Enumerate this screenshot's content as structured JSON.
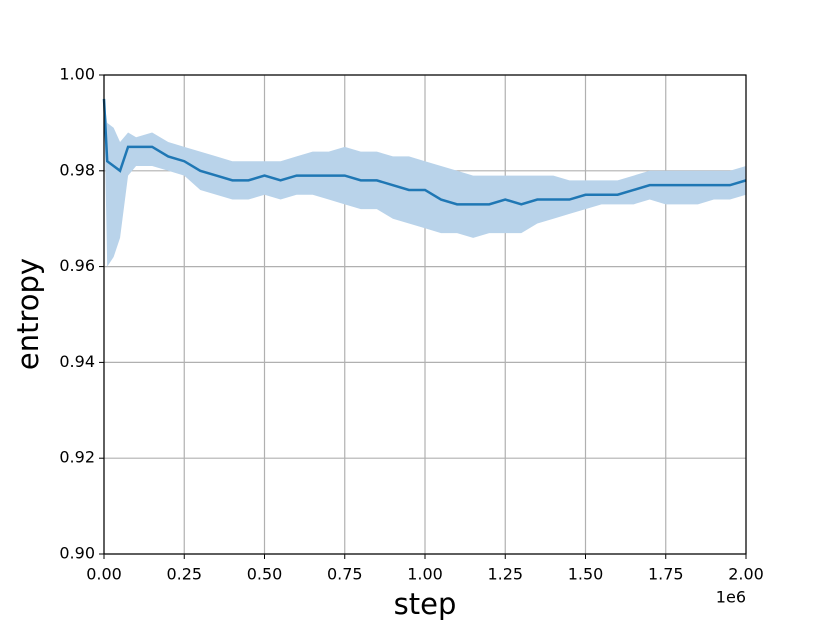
{
  "chart_data": {
    "type": "line",
    "xlabel": "step",
    "ylabel": "entropy",
    "x_offset_label": "1e6",
    "color": "#1f77b4",
    "band_color": "#b9d3ea",
    "grid": true,
    "x": [
      0,
      0.01,
      0.03,
      0.05,
      0.075,
      0.1,
      0.15,
      0.2,
      0.25,
      0.3,
      0.35,
      0.4,
      0.45,
      0.5,
      0.55,
      0.6,
      0.65,
      0.7,
      0.75,
      0.8,
      0.85,
      0.9,
      0.95,
      1.0,
      1.05,
      1.1,
      1.15,
      1.2,
      1.25,
      1.3,
      1.35,
      1.4,
      1.45,
      1.5,
      1.55,
      1.6,
      1.65,
      1.7,
      1.75,
      1.8,
      1.85,
      1.9,
      1.95,
      2.0
    ],
    "values": [
      0.995,
      0.982,
      0.981,
      0.98,
      0.985,
      0.985,
      0.985,
      0.983,
      0.982,
      0.98,
      0.979,
      0.978,
      0.978,
      0.979,
      0.978,
      0.979,
      0.979,
      0.979,
      0.979,
      0.978,
      0.978,
      0.977,
      0.976,
      0.976,
      0.974,
      0.973,
      0.973,
      0.973,
      0.974,
      0.973,
      0.974,
      0.974,
      0.974,
      0.975,
      0.975,
      0.975,
      0.976,
      0.977,
      0.977,
      0.977,
      0.977,
      0.977,
      0.977,
      0.978
    ],
    "lower": [
      0.995,
      0.96,
      0.962,
      0.966,
      0.979,
      0.981,
      0.981,
      0.98,
      0.979,
      0.976,
      0.975,
      0.974,
      0.974,
      0.975,
      0.974,
      0.975,
      0.975,
      0.974,
      0.973,
      0.972,
      0.972,
      0.97,
      0.969,
      0.968,
      0.967,
      0.967,
      0.966,
      0.967,
      0.967,
      0.967,
      0.969,
      0.97,
      0.971,
      0.972,
      0.973,
      0.973,
      0.973,
      0.974,
      0.973,
      0.973,
      0.973,
      0.974,
      0.974,
      0.975
    ],
    "upper": [
      0.995,
      0.99,
      0.989,
      0.986,
      0.988,
      0.987,
      0.988,
      0.986,
      0.985,
      0.984,
      0.983,
      0.982,
      0.982,
      0.982,
      0.982,
      0.983,
      0.984,
      0.984,
      0.985,
      0.984,
      0.984,
      0.983,
      0.983,
      0.982,
      0.981,
      0.98,
      0.979,
      0.979,
      0.979,
      0.979,
      0.979,
      0.979,
      0.978,
      0.978,
      0.978,
      0.978,
      0.979,
      0.98,
      0.98,
      0.98,
      0.98,
      0.98,
      0.98,
      0.981
    ],
    "xlim": [
      0,
      2.0
    ],
    "ylim": [
      0.9,
      1.0
    ],
    "xticks": [
      {
        "value": 0,
        "label": "0.00"
      },
      0.25,
      {
        "value": 0.5,
        "label": "0.50"
      },
      0.75,
      {
        "value": 1.0,
        "label": "1.00"
      },
      1.25,
      {
        "value": 1.5,
        "label": "1.50"
      },
      1.75,
      {
        "value": 2.0,
        "label": "2.00"
      }
    ],
    "yticks": [
      {
        "value": 0.9,
        "label": "0.90"
      },
      0.92,
      0.94,
      0.96,
      0.98,
      {
        "value": 1.0,
        "label": "1.00"
      }
    ]
  }
}
